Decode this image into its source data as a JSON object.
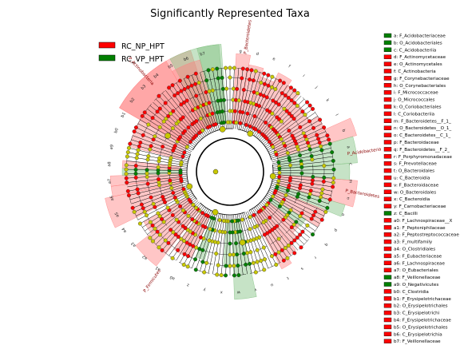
{
  "title": "Significantly Represented Taxa",
  "legend": [
    {
      "label": "RC_NP_HPT",
      "color": "#ff0000"
    },
    {
      "label": "RC_VP_HPT",
      "color": "#008000"
    }
  ],
  "colors": {
    "np": "#ff0000",
    "vp": "#008000",
    "np_fill": "#ff8080",
    "vp_fill": "#80c080",
    "neutral_node": "#c8c800",
    "tree_line": "#000000"
  },
  "taxa_key": [
    {
      "text": "a: F_Acidobacteriaceae",
      "group": "vp"
    },
    {
      "text": "b: O_Acidobacteriales",
      "group": "vp"
    },
    {
      "text": "c: C_Acidobacteriia",
      "group": "vp"
    },
    {
      "text": "d: F_Actinomycetaceae",
      "group": "np"
    },
    {
      "text": "e: O_Actinomycetales",
      "group": "np"
    },
    {
      "text": "f: C_Actinobacteria",
      "group": "np"
    },
    {
      "text": "g: F_Corynebacteriaceae",
      "group": "np"
    },
    {
      "text": "h: O_Corynebacteriales",
      "group": "np"
    },
    {
      "text": "i: F_Micrococcaceae",
      "group": "np"
    },
    {
      "text": "j: O_Micrococcales",
      "group": "np"
    },
    {
      "text": "k: O_Coriobacteriales",
      "group": "np"
    },
    {
      "text": "l: C_Coriobacteriia",
      "group": "np"
    },
    {
      "text": "m: F_Bacteroidetes__F_1_",
      "group": "np"
    },
    {
      "text": "n: O_Bacteroidetes__O_1_",
      "group": "np"
    },
    {
      "text": "o: C_Bacteroidetes__C_1_",
      "group": "np"
    },
    {
      "text": "p: F_Bacteroidaceae",
      "group": "np"
    },
    {
      "text": "q: F_Bacteroidetes__F_2_",
      "group": "np"
    },
    {
      "text": "r: F_Porphyromonadaceae",
      "group": "np"
    },
    {
      "text": "s: F_Prevotellaceae",
      "group": "np"
    },
    {
      "text": "t: O_Bacteroidales",
      "group": "np"
    },
    {
      "text": "u: C_Bacteroidia",
      "group": "np"
    },
    {
      "text": "v: F_Bacteroidaceae",
      "group": "np"
    },
    {
      "text": "w: O_Bacteroidales",
      "group": "np"
    },
    {
      "text": "x: C_Bacteroidia",
      "group": "np"
    },
    {
      "text": "y: F_Carnobacteriaceae",
      "group": "np"
    },
    {
      "text": "z: C_Bacilli",
      "group": "vp"
    },
    {
      "text": "a0: F_Lachnospiraceae__X",
      "group": "np"
    },
    {
      "text": "a1: F_Peptoniphilaceae",
      "group": "np"
    },
    {
      "text": "a2: F_Peptostreptococcaceae",
      "group": "np"
    },
    {
      "text": "a3: F_multifamily",
      "group": "np"
    },
    {
      "text": "a4: O_Clostridiales",
      "group": "np"
    },
    {
      "text": "a5: F_Eubacteriaceae",
      "group": "np"
    },
    {
      "text": "a6: F_Lachnospiraceae",
      "group": "np"
    },
    {
      "text": "a7: O_Eubacteriales",
      "group": "np"
    },
    {
      "text": "a8: F_Veillonellaceae",
      "group": "vp"
    },
    {
      "text": "a9: O_Negativicutes",
      "group": "vp"
    },
    {
      "text": "b0: C_Clostridia",
      "group": "np"
    },
    {
      "text": "b1: F_Erysipelotrichaceae",
      "group": "np"
    },
    {
      "text": "b2: O_Erysipelotrichales",
      "group": "np"
    },
    {
      "text": "b3: C_Erysipelotrichi",
      "group": "np"
    },
    {
      "text": "b4: F_Erysipelotrichaceae",
      "group": "np"
    },
    {
      "text": "b5: O_Erysipelotrichales",
      "group": "np"
    },
    {
      "text": "b6: C_Erysipelotrichia",
      "group": "np"
    },
    {
      "text": "b7: F_Veillonellaceae",
      "group": "np"
    }
  ],
  "ring_labels": [
    "g",
    "d",
    "e",
    "f",
    "i",
    "j",
    "k",
    "l",
    "b",
    "a",
    "c",
    "m",
    "n",
    "o",
    "p",
    "q",
    "r",
    "s",
    "t",
    "u",
    "v",
    "w",
    "x",
    "y",
    "z",
    "a0",
    "a1",
    "a2",
    "a3",
    "a4",
    "a5",
    "a6",
    "a7",
    "a8",
    "a9",
    "b0",
    "b1",
    "b2",
    "b3",
    "b4",
    "b5",
    "b6",
    "b7"
  ],
  "outer_labels": [
    {
      "text": "P_Bacteroidetes",
      "group": "np"
    },
    {
      "text": "P_Acidobacteria",
      "group": "vp"
    },
    {
      "text": "P_Bacteroidetes",
      "group": "np"
    },
    {
      "text": "P_Firmicutes",
      "group": "np"
    },
    {
      "text": "P_Actinobacteria",
      "group": "np"
    }
  ]
}
